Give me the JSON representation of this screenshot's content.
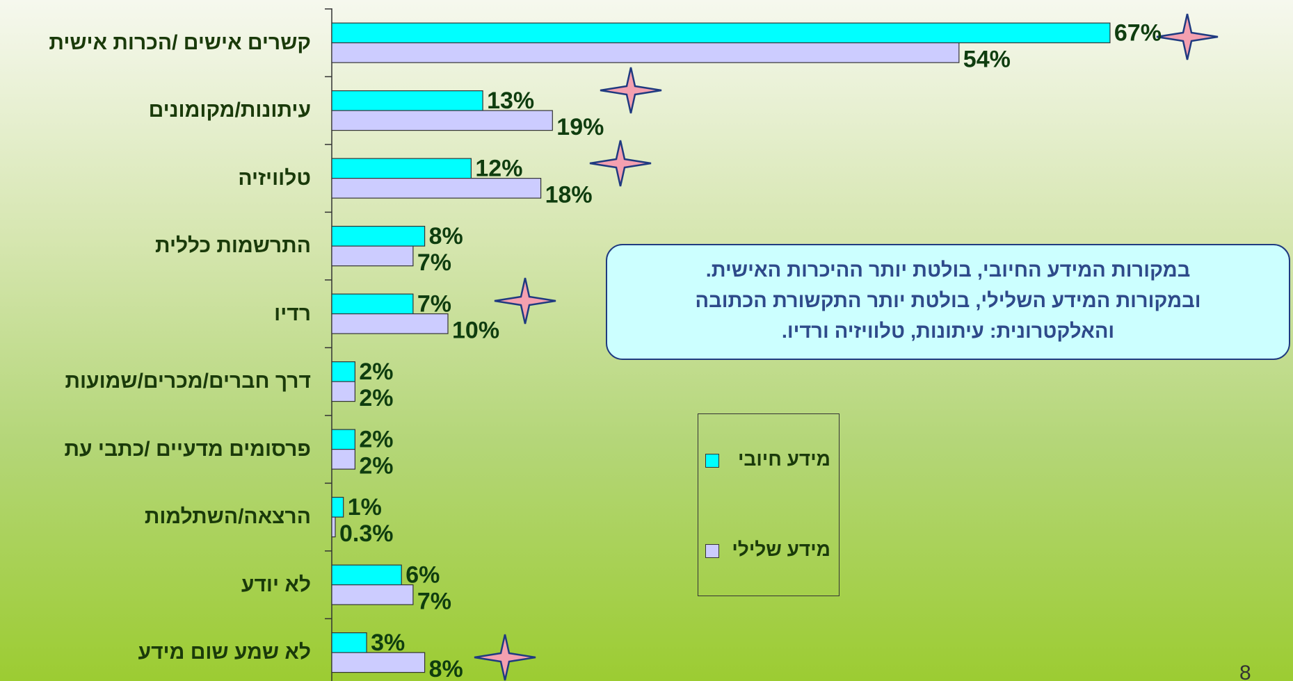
{
  "chart_data": {
    "type": "barh",
    "categories": [
      "קשרים אישים /הכרות אישית",
      "עיתונות/מקומונים",
      "טלוויזיה",
      "התרשמות כללית",
      "רדיו",
      "דרך חברים/מכרים/שמועות",
      "פרסומים מדעיים /כתבי עת",
      "הרצאה/השתלמות",
      "לא יודע",
      "לא שמע שום מידע"
    ],
    "series": [
      {
        "name": "מידע חיובי",
        "color": "#00ffff",
        "values": [
          67,
          13,
          12,
          8,
          7,
          2,
          2,
          1,
          6,
          3
        ],
        "value_labels": [
          "67%",
          "13%",
          "12%",
          "8%",
          "7%",
          "2%",
          "2%",
          "1%",
          "6%",
          "3%"
        ]
      },
      {
        "name": "מידע שלילי",
        "color": "#ccccff",
        "values": [
          54,
          19,
          18,
          7,
          10,
          2,
          2,
          0.3,
          7,
          8
        ],
        "value_labels": [
          "54%",
          "19%",
          "18%",
          "7%",
          "10%",
          "2%",
          "2%",
          "0.3%",
          "7%",
          "8%"
        ]
      }
    ],
    "xlim": [
      0,
      80
    ],
    "annotation": [
      "במקורות המידע החיובי, בולטת יותר ההיכרות האישית.",
      "ובמקורות המידע השלילי, בולטת יותר התקשורת הכתובה",
      "והאלקטרונית: עיתונות, טלוויזיה ורדיו."
    ],
    "page_number": "8"
  }
}
